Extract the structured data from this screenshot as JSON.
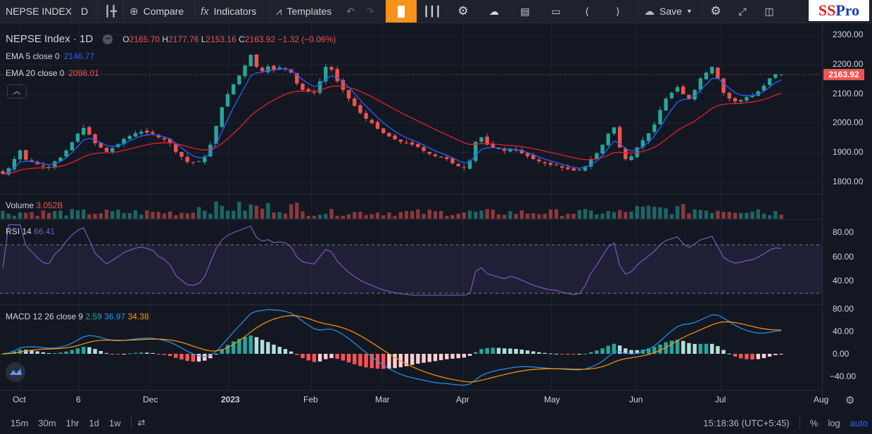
{
  "toolbar": {
    "symbol": "NEPSE INDEX",
    "interval": "D",
    "compare": "Compare",
    "indicators": "Indicators",
    "templates": "Templates",
    "save": "Save"
  },
  "logo": {
    "part1": "SS",
    "part2": "Pro"
  },
  "legend": {
    "title": "NEPSE Index · 1D",
    "open_label": "O",
    "open": "2165.70",
    "high_label": "H",
    "high": "2177.76",
    "low_label": "L",
    "low": "2153.16",
    "close_label": "C",
    "close": "2163.92",
    "change": "−1.32 (−0.06%)",
    "ema5_label": "EMA 5 close 0",
    "ema5": "2146.77",
    "ema20_label": "EMA 20 close 0",
    "ema20": "2098.01"
  },
  "panes": {
    "volume_label": "Volume",
    "volume": "3.052B",
    "rsi_label": "RSI 14",
    "rsi": "66.41",
    "macd_label": "MACD 12 26 close 9",
    "macd_hist": "2.59",
    "macd_line": "36.97",
    "macd_signal": "34.38"
  },
  "price_axis": [
    "2300.00",
    "2200.00",
    "2100.00",
    "2000.00",
    "1900.00",
    "1800.00"
  ],
  "last_price": "2163.92",
  "rsi_axis": [
    "80.00",
    "60.00",
    "40.00"
  ],
  "macd_axis": [
    "80.00",
    "40.00",
    "0.00",
    "−40.00"
  ],
  "time_axis": [
    "Oct",
    "6",
    "Dec",
    "2023",
    "Feb",
    "Mar",
    "Apr",
    "May",
    "Jun",
    "Jul",
    "Aug"
  ],
  "bottom": {
    "timeframes": [
      "15m",
      "30m",
      "1hr",
      "1d",
      "1w"
    ],
    "clock": "15:18:36 (UTC+5:45)",
    "percent": "%",
    "log": "log",
    "auto": "auto"
  },
  "colors": {
    "up": "#26a69a",
    "down": "#ef5350",
    "ema5": "#2962ff",
    "ema20": "#e4202a",
    "rsi": "#7e57c2",
    "macd": "#2196f3",
    "signal": "#ff9800",
    "accent": "#f7931a"
  },
  "chart_data": {
    "type": "candlestick",
    "price_range": [
      1780,
      2310
    ],
    "ema5_last": 2146.77,
    "ema20_last": 2098.01,
    "closes": [
      1818,
      1838,
      1870,
      1900,
      1868,
      1860,
      1852,
      1845,
      1843,
      1862,
      1875,
      1900,
      1928,
      1958,
      1978,
      1955,
      1925,
      1910,
      1895,
      1908,
      1922,
      1940,
      1950,
      1960,
      1965,
      1962,
      1958,
      1945,
      1938,
      1925,
      1895,
      1878,
      1860,
      1858,
      1862,
      1878,
      1920,
      1985,
      2050,
      2095,
      2130,
      2160,
      2195,
      2232,
      2190,
      2175,
      2192,
      2180,
      2188,
      2185,
      2170,
      2132,
      2110,
      2105,
      2100,
      2140,
      2190,
      2180,
      2140,
      2110,
      2080,
      2055,
      2030,
      2010,
      1995,
      1975,
      1960,
      1948,
      1938,
      1930,
      1925,
      1920,
      1912,
      1898,
      1888,
      1880,
      1875,
      1870,
      1855,
      1845,
      1840,
      1865,
      1930,
      1945,
      1920,
      1912,
      1905,
      1898,
      1905,
      1900,
      1890,
      1880,
      1870,
      1862,
      1855,
      1850,
      1848,
      1840,
      1835,
      1830,
      1832,
      1845,
      1870,
      1890,
      1920,
      1958,
      1980,
      1910,
      1870,
      1880,
      1910,
      1935,
      1960,
      1990,
      2040,
      2080,
      2100,
      2120,
      2095,
      2080,
      2110,
      2150,
      2170,
      2190,
      2150,
      2100,
      2080,
      2070,
      2075,
      2085,
      2090,
      2105,
      2125,
      2150,
      2165,
      2163.92
    ],
    "volume_last": "3.052B",
    "rsi_last": 66.41,
    "rsi_bands": [
      70,
      30
    ],
    "macd_last": {
      "hist": 2.59,
      "macd": 36.97,
      "signal": 34.38
    },
    "macd_range": [
      -55,
      85
    ]
  }
}
